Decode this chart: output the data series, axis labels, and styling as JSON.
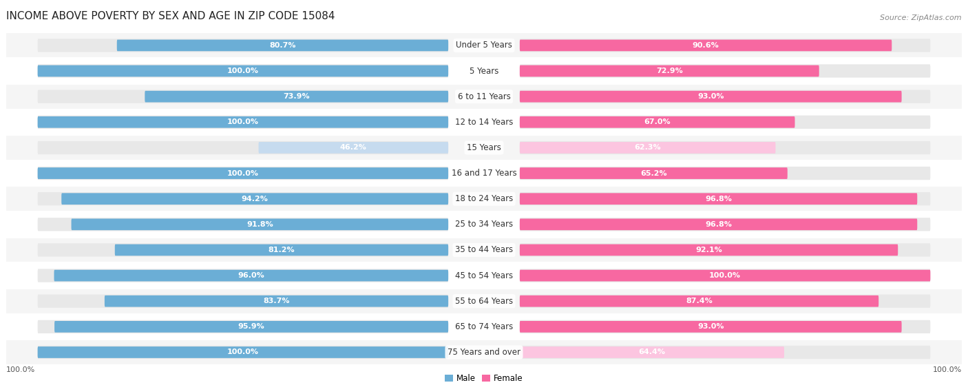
{
  "title": "INCOME ABOVE POVERTY BY SEX AND AGE IN ZIP CODE 15084",
  "source": "Source: ZipAtlas.com",
  "categories": [
    "Under 5 Years",
    "5 Years",
    "6 to 11 Years",
    "12 to 14 Years",
    "15 Years",
    "16 and 17 Years",
    "18 to 24 Years",
    "25 to 34 Years",
    "35 to 44 Years",
    "45 to 54 Years",
    "55 to 64 Years",
    "65 to 74 Years",
    "75 Years and over"
  ],
  "male_values": [
    80.7,
    100.0,
    73.9,
    100.0,
    46.2,
    100.0,
    94.2,
    91.8,
    81.2,
    96.0,
    83.7,
    95.9,
    100.0
  ],
  "female_values": [
    90.6,
    72.9,
    93.0,
    67.0,
    62.3,
    65.2,
    96.8,
    96.8,
    92.1,
    100.0,
    87.4,
    93.0,
    64.4
  ],
  "male_color": "#6baed6",
  "female_color": "#f768a1",
  "male_light_color": "#c6dbef",
  "female_light_color": "#fcc5e0",
  "track_color": "#e8e8e8",
  "row_bg_odd": "#f5f5f5",
  "row_bg_even": "#ffffff",
  "title_fontsize": 11,
  "label_fontsize": 8.5,
  "value_fontsize": 8,
  "source_fontsize": 8,
  "legend_male": "Male",
  "legend_female": "Female",
  "bottom_note": "100.0%"
}
